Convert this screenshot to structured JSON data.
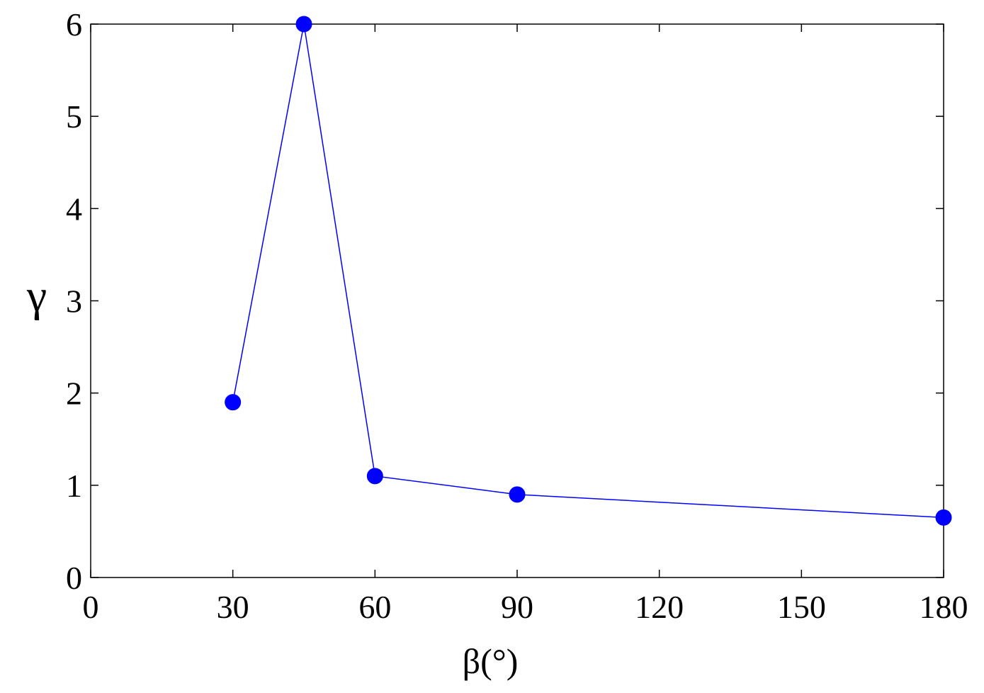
{
  "chart_data": {
    "type": "line",
    "title": "",
    "xlabel": "β(°)",
    "ylabel": "γ",
    "x_ticks": [
      "0",
      "30",
      "60",
      "90",
      "120",
      "150",
      "180"
    ],
    "y_ticks": [
      "0",
      "1",
      "2",
      "3",
      "4",
      "5",
      "6"
    ],
    "xlim": [
      0,
      180
    ],
    "ylim": [
      0,
      6
    ],
    "grid": false,
    "series": [
      {
        "x": [
          30,
          45,
          60,
          90,
          180
        ],
        "y": [
          1.9,
          6.0,
          1.1,
          0.9,
          0.65
        ],
        "color": "#0000ff",
        "marker": "circle"
      }
    ]
  }
}
